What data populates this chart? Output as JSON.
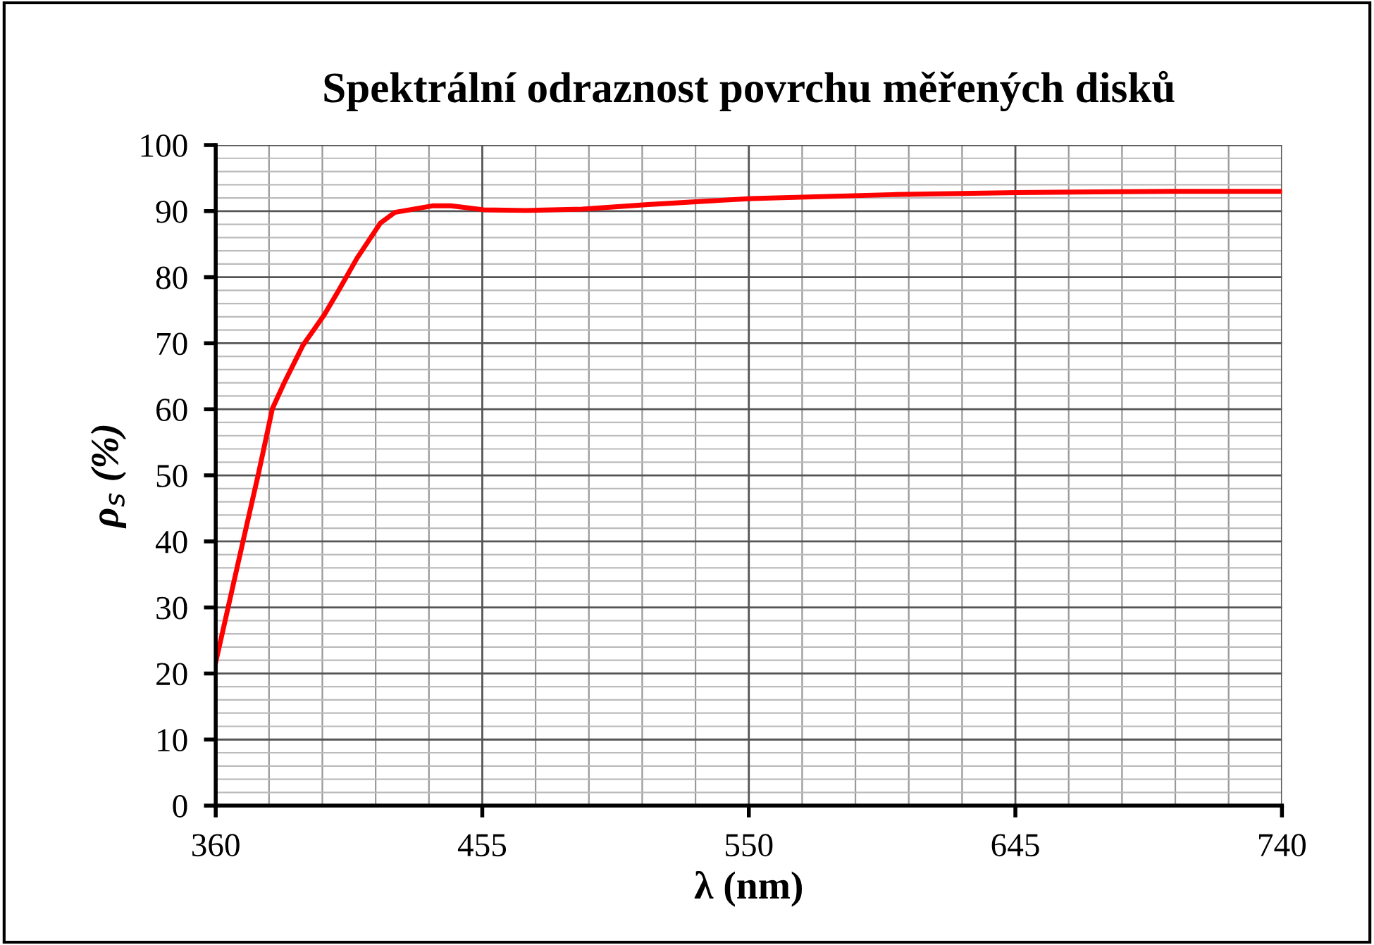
{
  "chart_data": {
    "type": "line",
    "title": "Spektrální odraznost povrchu měřených disků",
    "xlabel": "λ (nm)",
    "ylabel": "ρ$_{s}$ (%)",
    "x": [
      360,
      370.2,
      375.2,
      380.2,
      384.4,
      391.1,
      398.7,
      403.7,
      410.4,
      418.7,
      423.8,
      437.2,
      443.8,
      455.5,
      470.6,
      490.6,
      514.1,
      550.9,
      601.1,
      645.5,
      700,
      740
    ],
    "series": [
      {
        "color": "#ff0000",
        "values": [
          21.7,
          40.9,
          50.2,
          60.1,
          64.0,
          69.7,
          74.3,
          77.9,
          82.9,
          88.2,
          89.8,
          90.8,
          90.8,
          90.2,
          90.1,
          90.3,
          91.0,
          91.9,
          92.5,
          92.8,
          93.0,
          93.0
        ]
      }
    ],
    "xlim": [
      360,
      740
    ],
    "xticks": [
      360,
      455,
      550,
      645,
      740
    ],
    "ylim": [
      0,
      100
    ],
    "yticks": [
      0,
      10,
      20,
      30,
      40,
      50,
      60,
      70,
      80,
      90,
      100
    ],
    "grid": true,
    "marker": "none",
    "line_style": "solid"
  }
}
